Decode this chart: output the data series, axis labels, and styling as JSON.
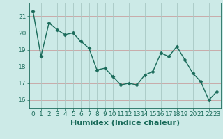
{
  "x": [
    0,
    1,
    2,
    3,
    4,
    5,
    6,
    7,
    8,
    9,
    10,
    11,
    12,
    13,
    14,
    15,
    16,
    17,
    18,
    19,
    20,
    21,
    22,
    23
  ],
  "y": [
    21.3,
    18.6,
    20.6,
    20.2,
    19.9,
    20.0,
    19.5,
    19.1,
    17.8,
    17.9,
    17.4,
    16.9,
    17.0,
    16.9,
    17.5,
    17.7,
    18.8,
    18.6,
    19.2,
    18.4,
    17.6,
    17.1,
    16.0,
    16.5
  ],
  "line_color": "#1a6b5a",
  "marker": "D",
  "markersize": 2.5,
  "linewidth": 1.0,
  "bg_color": "#cceae7",
  "grid_color_h": "#c8a0a0",
  "grid_color_v": "#a8c8c4",
  "xlabel": "Humidex (Indice chaleur)",
  "ylim": [
    15.5,
    21.8
  ],
  "xlim": [
    -0.5,
    23.5
  ],
  "yticks": [
    16,
    17,
    18,
    19,
    20,
    21
  ],
  "xticks": [
    0,
    1,
    2,
    3,
    4,
    5,
    6,
    7,
    8,
    9,
    10,
    11,
    12,
    13,
    14,
    15,
    16,
    17,
    18,
    19,
    20,
    21,
    22,
    23
  ],
  "tick_color": "#1a6b5a",
  "label_color": "#1a6b5a",
  "xlabel_fontsize": 8,
  "tick_fontsize": 6.5
}
